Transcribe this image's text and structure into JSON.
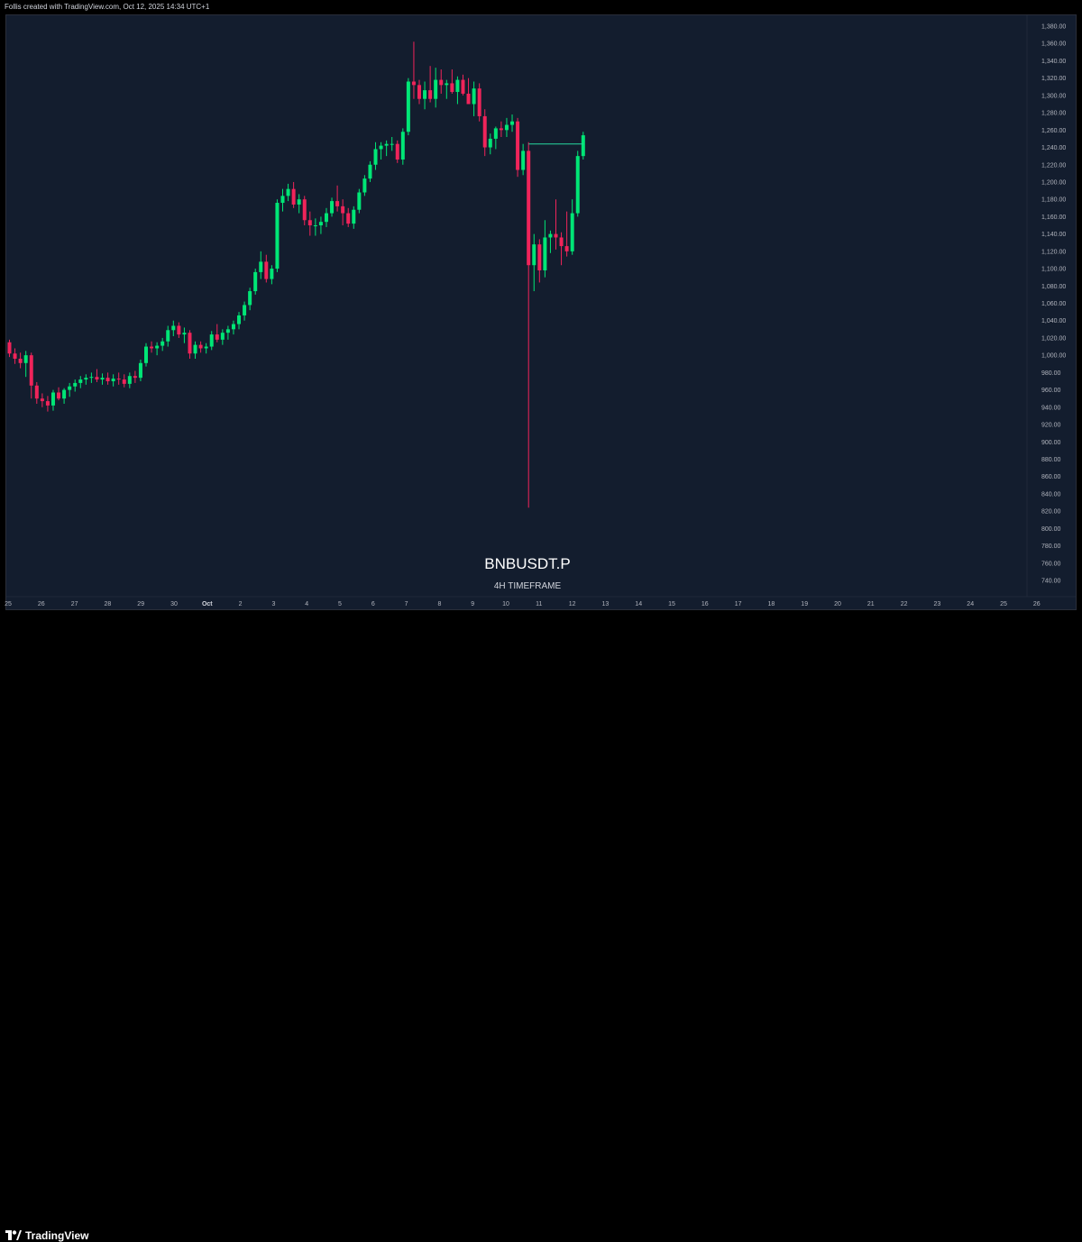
{
  "header": {
    "caption": "Follis created with TradingView.com, Oct 12, 2025 14:34 UTC+1"
  },
  "branding": {
    "logo_text": "TradingView",
    "logo_icon": "tradingview-logo-icon"
  },
  "colors": {
    "background": "#131d2e",
    "bull": "#00e676",
    "bear": "#f0245a",
    "level_line": "#26d9a0",
    "axis_text": "#b2b5be"
  },
  "chart_data": {
    "type": "candlestick",
    "title": "BNBUSDT.P",
    "subtitle": "4H TIMEFRAME",
    "ylim": [
      740,
      1380
    ],
    "y_ticks": [
      "740.00",
      "760.00",
      "780.00",
      "800.00",
      "820.00",
      "840.00",
      "860.00",
      "880.00",
      "900.00",
      "920.00",
      "940.00",
      "960.00",
      "980.00",
      "1,000.00",
      "1,020.00",
      "1,040.00",
      "1,060.00",
      "1,080.00",
      "1,100.00",
      "1,120.00",
      "1,140.00",
      "1,160.00",
      "1,180.00",
      "1,200.00",
      "1,220.00",
      "1,240.00",
      "1,260.00",
      "1,280.00",
      "1,300.00",
      "1,320.00",
      "1,340.00",
      "1,360.00",
      "1,380.00"
    ],
    "x_ticks": [
      "25",
      "26",
      "27",
      "28",
      "29",
      "30",
      "Oct",
      "2",
      "3",
      "4",
      "5",
      "6",
      "7",
      "8",
      "9",
      "10",
      "11",
      "12",
      "13",
      "14",
      "15",
      "16",
      "17",
      "18",
      "19",
      "20",
      "21",
      "22",
      "23",
      "24",
      "25",
      "26"
    ],
    "bold_x_tick": "Oct",
    "level_line": {
      "value": 1244,
      "start_candle": 95,
      "end_candle": 105
    },
    "candles": [
      [
        1015,
        1018,
        998,
        1002
      ],
      [
        1002,
        1008,
        990,
        996
      ],
      [
        996,
        1003,
        985,
        991
      ],
      [
        991,
        1005,
        975,
        1000
      ],
      [
        1000,
        1003,
        950,
        965
      ],
      [
        965,
        969,
        944,
        950
      ],
      [
        950,
        956,
        940,
        947
      ],
      [
        947,
        953,
        935,
        942
      ],
      [
        942,
        960,
        936,
        957
      ],
      [
        957,
        963,
        948,
        950
      ],
      [
        950,
        962,
        944,
        960
      ],
      [
        960,
        968,
        952,
        964
      ],
      [
        964,
        972,
        958,
        968
      ],
      [
        968,
        976,
        962,
        972
      ],
      [
        972,
        978,
        966,
        974
      ],
      [
        974,
        980,
        968,
        975
      ],
      [
        975,
        984,
        969,
        972
      ],
      [
        972,
        979,
        966,
        974
      ],
      [
        974,
        980,
        966,
        970
      ],
      [
        970,
        978,
        964,
        973
      ],
      [
        973,
        980,
        966,
        972
      ],
      [
        972,
        978,
        963,
        967
      ],
      [
        967,
        980,
        962,
        976
      ],
      [
        976,
        982,
        968,
        974
      ],
      [
        974,
        995,
        970,
        991
      ],
      [
        991,
        1014,
        987,
        1010
      ],
      [
        1010,
        1016,
        1003,
        1008
      ],
      [
        1008,
        1015,
        1000,
        1011
      ],
      [
        1011,
        1020,
        1005,
        1016
      ],
      [
        1016,
        1034,
        1010,
        1029
      ],
      [
        1029,
        1040,
        1022,
        1034
      ],
      [
        1034,
        1038,
        1020,
        1024
      ],
      [
        1024,
        1032,
        1014,
        1026
      ],
      [
        1026,
        1029,
        996,
        1002
      ],
      [
        1002,
        1016,
        996,
        1012
      ],
      [
        1012,
        1016,
        1003,
        1008
      ],
      [
        1008,
        1014,
        1002,
        1010
      ],
      [
        1010,
        1028,
        1006,
        1024
      ],
      [
        1024,
        1036,
        1015,
        1018
      ],
      [
        1018,
        1030,
        1012,
        1026
      ],
      [
        1026,
        1034,
        1018,
        1030
      ],
      [
        1030,
        1040,
        1024,
        1036
      ],
      [
        1036,
        1050,
        1030,
        1046
      ],
      [
        1046,
        1062,
        1040,
        1058
      ],
      [
        1058,
        1078,
        1052,
        1074
      ],
      [
        1074,
        1100,
        1070,
        1096
      ],
      [
        1096,
        1120,
        1088,
        1108
      ],
      [
        1108,
        1116,
        1084,
        1088
      ],
      [
        1088,
        1104,
        1082,
        1100
      ],
      [
        1100,
        1180,
        1096,
        1176
      ],
      [
        1176,
        1192,
        1166,
        1184
      ],
      [
        1184,
        1198,
        1178,
        1192
      ],
      [
        1192,
        1200,
        1170,
        1174
      ],
      [
        1174,
        1186,
        1164,
        1180
      ],
      [
        1180,
        1184,
        1150,
        1156
      ],
      [
        1156,
        1166,
        1138,
        1150
      ],
      [
        1150,
        1158,
        1138,
        1150
      ],
      [
        1150,
        1160,
        1140,
        1154
      ],
      [
        1154,
        1170,
        1148,
        1164
      ],
      [
        1164,
        1182,
        1160,
        1178
      ],
      [
        1178,
        1196,
        1166,
        1172
      ],
      [
        1172,
        1180,
        1150,
        1164
      ],
      [
        1164,
        1170,
        1148,
        1152
      ],
      [
        1152,
        1172,
        1146,
        1168
      ],
      [
        1168,
        1192,
        1164,
        1188
      ],
      [
        1188,
        1208,
        1184,
        1204
      ],
      [
        1204,
        1224,
        1200,
        1220
      ],
      [
        1220,
        1246,
        1214,
        1238
      ],
      [
        1238,
        1246,
        1226,
        1242
      ],
      [
        1242,
        1248,
        1230,
        1244
      ],
      [
        1244,
        1252,
        1236,
        1244
      ],
      [
        1244,
        1248,
        1222,
        1226
      ],
      [
        1226,
        1262,
        1220,
        1258
      ],
      [
        1258,
        1320,
        1254,
        1316
      ],
      [
        1316,
        1362,
        1296,
        1312
      ],
      [
        1312,
        1318,
        1290,
        1296
      ],
      [
        1296,
        1316,
        1284,
        1306
      ],
      [
        1306,
        1334,
        1292,
        1296
      ],
      [
        1296,
        1332,
        1286,
        1318
      ],
      [
        1318,
        1330,
        1302,
        1312
      ],
      [
        1312,
        1318,
        1296,
        1314
      ],
      [
        1314,
        1330,
        1302,
        1304
      ],
      [
        1304,
        1322,
        1290,
        1318
      ],
      [
        1318,
        1324,
        1300,
        1302
      ],
      [
        1302,
        1320,
        1294,
        1290
      ],
      [
        1290,
        1316,
        1276,
        1308
      ],
      [
        1308,
        1314,
        1270,
        1276
      ],
      [
        1276,
        1284,
        1230,
        1240
      ],
      [
        1240,
        1256,
        1232,
        1250
      ],
      [
        1250,
        1264,
        1238,
        1262
      ],
      [
        1262,
        1270,
        1252,
        1260
      ],
      [
        1260,
        1274,
        1252,
        1266
      ],
      [
        1266,
        1278,
        1258,
        1270
      ],
      [
        1270,
        1274,
        1206,
        1214
      ],
      [
        1214,
        1244,
        1208,
        1236
      ],
      [
        1236,
        1246,
        824,
        1104
      ],
      [
        1104,
        1140,
        1074,
        1128
      ],
      [
        1128,
        1134,
        1084,
        1098
      ],
      [
        1098,
        1156,
        1090,
        1136
      ],
      [
        1136,
        1144,
        1118,
        1140
      ],
      [
        1140,
        1180,
        1122,
        1136
      ],
      [
        1136,
        1142,
        1104,
        1126
      ],
      [
        1126,
        1166,
        1114,
        1120
      ],
      [
        1120,
        1180,
        1116,
        1164
      ],
      [
        1164,
        1236,
        1160,
        1230
      ],
      [
        1230,
        1258,
        1226,
        1254
      ]
    ]
  }
}
